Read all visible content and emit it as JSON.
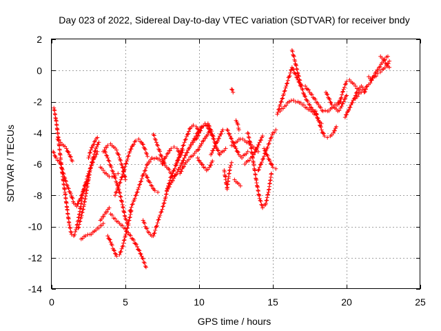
{
  "chart_data": {
    "type": "scatter",
    "title": "Day 023 of 2022, Sidereal Day-to-day VTEC variation (SDTVAR) for receiver bndy",
    "xlabel": "GPS time / hours",
    "ylabel": "SDTVAR / TECUs",
    "xlim": [
      0,
      25
    ],
    "ylim": [
      -14,
      2
    ],
    "x_ticks": [
      0,
      5,
      10,
      15,
      20,
      25
    ],
    "y_ticks": [
      -14,
      -12,
      -10,
      -8,
      -6,
      -4,
      -2,
      0,
      2
    ],
    "x_tick_labels": [
      "0",
      "5",
      "10",
      "15",
      "20",
      "25"
    ],
    "y_tick_labels": [
      "-14",
      "-12",
      "-10",
      "-8",
      "-6",
      "-4",
      "-2",
      "0",
      "2"
    ],
    "grid": true,
    "marker": "+",
    "series": [
      {
        "name": "SDTVAR",
        "color": "#ff0000",
        "x": [
          0.15,
          0.3,
          0.45,
          0.6,
          0.75,
          0.9,
          1.05,
          1.2,
          1.35,
          1.5,
          1.65,
          1.8,
          1.95,
          2.1,
          2.3,
          2.5,
          2.7,
          2.9,
          3.1
        ],
        "y": [
          -2.4,
          -3.2,
          -4.3,
          -5.6,
          -6.8,
          -7.8,
          -8.9,
          -9.9,
          -10.5,
          -10.6,
          -10.2,
          -9.6,
          -8.8,
          -7.9,
          -7.2,
          -6.6,
          -6.1,
          -5.6,
          -5.2
        ]
      },
      {
        "name": "SDTVAR",
        "color": "#ff0000",
        "x": [
          0.1,
          0.3,
          0.5,
          0.7,
          0.9,
          1.1,
          1.3,
          1.5,
          1.7,
          1.9,
          2.1,
          2.3,
          2.5
        ],
        "y": [
          -5.2,
          -5.6,
          -5.8,
          -6.3,
          -6.9,
          -7.5,
          -7.9,
          -8.5,
          -8.7,
          -8.3,
          -7.8,
          -7.3,
          -7.0
        ]
      },
      {
        "name": "SDTVAR",
        "color": "#ff0000",
        "x": [
          0.4,
          0.6,
          0.8,
          1.0,
          1.2,
          1.4
        ],
        "y": [
          -4.4,
          -4.6,
          -4.8,
          -5.0,
          -5.4,
          -5.8
        ]
      },
      {
        "name": "SDTVAR",
        "color": "#ff0000",
        "x": [
          1.8,
          2.0,
          2.2,
          2.4,
          2.6,
          2.8,
          3.0,
          3.2
        ],
        "y": [
          -10.1,
          -9.4,
          -8.6,
          -7.5,
          -6.4,
          -5.6,
          -5.0,
          -4.6
        ]
      },
      {
        "name": "SDTVAR",
        "color": "#ff0000",
        "x": [
          2.0,
          2.3,
          2.6,
          2.9,
          3.2,
          3.5
        ],
        "y": [
          -10.8,
          -10.6,
          -10.5,
          -10.3,
          -10.1,
          -9.8
        ]
      },
      {
        "name": "SDTVAR",
        "color": "#ff0000",
        "x": [
          2.5,
          2.65,
          2.8,
          2.95,
          3.1
        ],
        "y": [
          -5.6,
          -5.1,
          -4.8,
          -4.5,
          -4.3
        ]
      },
      {
        "name": "SDTVAR",
        "color": "#ff0000",
        "x": [
          3.3,
          3.5,
          3.7,
          3.9,
          4.1,
          4.3,
          4.5
        ],
        "y": [
          -6.2,
          -6.4,
          -6.6,
          -6.8,
          -6.8,
          -6.7,
          -6.6
        ]
      },
      {
        "name": "SDTVAR",
        "color": "#ff0000",
        "x": [
          3.6,
          3.8,
          4.0,
          4.2,
          4.4,
          4.6,
          4.8,
          5.0,
          5.2
        ],
        "y": [
          -5.2,
          -5.6,
          -6.1,
          -6.6,
          -7.2,
          -7.8,
          -8.6,
          -9.5,
          -9.9
        ]
      },
      {
        "name": "SDTVAR",
        "color": "#ff0000",
        "x": [
          3.8,
          4.0,
          4.2,
          4.4,
          4.6,
          4.8,
          5.0,
          5.2,
          5.4
        ],
        "y": [
          -10.6,
          -11.0,
          -11.5,
          -11.9,
          -11.8,
          -11.3,
          -10.6,
          -9.8,
          -9.0
        ]
      },
      {
        "name": "SDTVAR",
        "color": "#ff0000",
        "x": [
          3.3,
          3.6,
          3.9
        ],
        "y": [
          -9.6,
          -9.2,
          -8.8
        ]
      },
      {
        "name": "SDTVAR",
        "color": "#ff0000",
        "x": [
          3.5,
          3.8,
          4.0,
          4.2,
          4.4,
          4.6,
          4.8,
          5.0
        ],
        "y": [
          -5.2,
          -4.8,
          -4.7,
          -4.9,
          -5.1,
          -5.6,
          -6.2,
          -7.0
        ]
      },
      {
        "name": "SDTVAR",
        "color": "#ff0000",
        "x": [
          4.0,
          4.3,
          4.6,
          4.9,
          5.2,
          5.5,
          5.8,
          6.1,
          6.4
        ],
        "y": [
          -9.2,
          -9.5,
          -9.8,
          -10.1,
          -10.4,
          -10.8,
          -11.3,
          -11.9,
          -12.6
        ]
      },
      {
        "name": "SDTVAR",
        "color": "#ff0000",
        "x": [
          4.3,
          4.5,
          4.7,
          4.9,
          5.1,
          5.3,
          5.5,
          5.7,
          5.9,
          6.1,
          6.3,
          6.5
        ],
        "y": [
          -8.0,
          -7.5,
          -7.0,
          -6.4,
          -5.8,
          -5.2,
          -4.8,
          -4.5,
          -4.4,
          -4.6,
          -5.0,
          -5.5
        ]
      },
      {
        "name": "SDTVAR",
        "color": "#ff0000",
        "x": [
          5.3,
          5.6,
          5.9,
          6.2,
          6.5,
          6.8,
          7.1,
          7.4
        ],
        "y": [
          -9.0,
          -8.3,
          -7.5,
          -6.7,
          -6.0,
          -5.6,
          -5.6,
          -5.8
        ]
      },
      {
        "name": "SDTVAR",
        "color": "#ff0000",
        "x": [
          6.4,
          6.6,
          6.8,
          7.0,
          7.2
        ],
        "y": [
          -6.7,
          -7.1,
          -7.4,
          -7.7,
          -7.8
        ]
      },
      {
        "name": "SDTVAR",
        "color": "#ff0000",
        "x": [
          6.2,
          6.4,
          6.6,
          6.8
        ],
        "y": [
          -9.6,
          -10.1,
          -10.4,
          -10.6
        ]
      },
      {
        "name": "SDTVAR",
        "color": "#ff0000",
        "x": [
          6.9,
          7.1,
          7.3,
          7.5,
          7.7,
          7.9,
          8.1,
          8.3,
          8.5,
          8.7,
          8.9
        ],
        "y": [
          -10.6,
          -10.0,
          -9.4,
          -8.9,
          -8.2,
          -7.4,
          -6.8,
          -6.4,
          -5.9,
          -5.5,
          -5.1
        ]
      },
      {
        "name": "SDTVAR",
        "color": "#ff0000",
        "x": [
          6.9,
          7.1,
          7.3,
          7.5,
          7.7,
          7.9,
          8.1,
          8.3
        ],
        "y": [
          -4.1,
          -4.6,
          -5.1,
          -5.7,
          -6.1,
          -6.3,
          -6.6,
          -6.8
        ]
      },
      {
        "name": "SDTVAR",
        "color": "#ff0000",
        "x": [
          7.5,
          7.7,
          7.9,
          8.1,
          8.3,
          8.5,
          8.7
        ],
        "y": [
          -6.0,
          -5.6,
          -5.3,
          -5.0,
          -4.9,
          -5.0,
          -5.3
        ]
      },
      {
        "name": "SDTVAR",
        "color": "#ff0000",
        "x": [
          7.8,
          8.1,
          8.4,
          8.7,
          9.0,
          9.3,
          9.6,
          9.9,
          10.2
        ],
        "y": [
          -7.7,
          -7.2,
          -6.7,
          -6.2,
          -5.6,
          -5.0,
          -4.5,
          -4.0,
          -3.6
        ]
      },
      {
        "name": "SDTVAR",
        "color": "#ff0000",
        "x": [
          8.4,
          8.6,
          8.8,
          9.0,
          9.2,
          9.4,
          9.6,
          9.8,
          10.0
        ],
        "y": [
          -6.1,
          -5.6,
          -5.1,
          -4.6,
          -4.1,
          -3.7,
          -3.5,
          -3.6,
          -3.9
        ]
      },
      {
        "name": "SDTVAR",
        "color": "#ff0000",
        "x": [
          8.7,
          8.9,
          9.1,
          9.3,
          9.5,
          9.7,
          9.9,
          10.1,
          10.3,
          10.5,
          10.7
        ],
        "y": [
          -6.6,
          -6.2,
          -5.9,
          -5.7,
          -5.5,
          -5.3,
          -5.1,
          -4.8,
          -4.5,
          -4.2,
          -3.9
        ]
      },
      {
        "name": "SDTVAR",
        "color": "#ff0000",
        "x": [
          9.6,
          9.8,
          10.0,
          10.2,
          10.4,
          10.6,
          10.8,
          11.0
        ],
        "y": [
          -4.6,
          -4.4,
          -4.0,
          -3.6,
          -3.4,
          -3.7,
          -4.0,
          -4.4
        ]
      },
      {
        "name": "SDTVAR",
        "color": "#ff0000",
        "x": [
          9.9,
          10.1,
          10.3,
          10.5,
          10.7,
          10.9
        ],
        "y": [
          -5.6,
          -5.9,
          -6.2,
          -6.4,
          -6.2,
          -5.8
        ]
      },
      {
        "name": "SDTVAR",
        "color": "#ff0000",
        "x": [
          10.6,
          10.8,
          11.0,
          11.2,
          11.4,
          11.6,
          11.8
        ],
        "y": [
          -3.4,
          -3.8,
          -4.4,
          -5.0,
          -5.4,
          -5.2,
          -5.0
        ]
      },
      {
        "name": "SDTVAR",
        "color": "#ff0000",
        "x": [
          10.8,
          11.0,
          11.2,
          11.4,
          11.6
        ],
        "y": [
          -5.4,
          -5.0,
          -4.6,
          -4.2,
          -3.8
        ]
      },
      {
        "name": "SDTVAR",
        "color": "#ff0000",
        "x": [
          11.7,
          11.8,
          11.9,
          12.0,
          12.1,
          12.2
        ],
        "y": [
          -6.4,
          -7.0,
          -7.6,
          -6.8,
          -6.2,
          -5.9
        ]
      },
      {
        "name": "SDTVAR",
        "color": "#ff0000",
        "x": [
          11.9,
          12.1,
          12.3,
          12.5,
          12.7,
          12.9,
          13.1,
          13.3
        ],
        "y": [
          -3.8,
          -4.2,
          -4.6,
          -5.0,
          -5.4,
          -5.6,
          -5.4,
          -5.2
        ]
      },
      {
        "name": "SDTVAR",
        "color": "#ff0000",
        "x": [
          12.2,
          12.5,
          12.8,
          13.1,
          13.4,
          13.7,
          14.0
        ],
        "y": [
          -4.8,
          -4.6,
          -4.4,
          -4.5,
          -4.7,
          -4.9,
          -5.2
        ]
      },
      {
        "name": "SDTVAR",
        "color": "#ff0000",
        "x": [
          12.4,
          12.6,
          12.8
        ],
        "y": [
          -7.0,
          -7.2,
          -7.4
        ]
      },
      {
        "name": "SDTVAR",
        "color": "#ff0000",
        "x": [
          12.5,
          12.6,
          12.7
        ],
        "y": [
          -3.2,
          -3.4,
          -3.8
        ]
      },
      {
        "name": "SDTVAR",
        "color": "#ff0000",
        "x": [
          13.1,
          13.3,
          13.5,
          13.7,
          13.9,
          14.1,
          14.3
        ],
        "y": [
          -6.0,
          -5.8,
          -5.6,
          -5.4,
          -5.0,
          -4.6,
          -4.2
        ]
      },
      {
        "name": "SDTVAR",
        "color": "#ff0000",
        "x": [
          13.3,
          13.5,
          13.7,
          13.9,
          14.1,
          14.3,
          14.5,
          14.7,
          14.9
        ],
        "y": [
          -4.0,
          -4.8,
          -6.0,
          -7.2,
          -8.2,
          -8.8,
          -8.6,
          -7.8,
          -6.6
        ]
      },
      {
        "name": "SDTVAR",
        "color": "#ff0000",
        "x": [
          14.0,
          14.2,
          14.4,
          14.6,
          14.8,
          15.0,
          15.2
        ],
        "y": [
          -6.4,
          -6.0,
          -5.5,
          -5.0,
          -4.5,
          -4.0,
          -3.8
        ]
      },
      {
        "name": "SDTVAR",
        "color": "#ff0000",
        "x": [
          14.4,
          14.6,
          14.8,
          15.0,
          15.2
        ],
        "y": [
          -5.0,
          -5.4,
          -5.8,
          -6.2,
          -6.3
        ]
      },
      {
        "name": "SDTVAR",
        "color": "#ff0000",
        "x": [
          15.3,
          15.5,
          15.7,
          15.9,
          16.1,
          16.3,
          16.5,
          16.7,
          16.9
        ],
        "y": [
          -2.8,
          -2.2,
          -1.6,
          -1.0,
          -0.4,
          0.2,
          -0.2,
          -0.6,
          -1.0
        ]
      },
      {
        "name": "SDTVAR",
        "color": "#ff0000",
        "x": [
          16.3,
          16.5,
          16.7,
          16.9,
          17.1,
          17.3,
          17.5,
          17.7,
          17.9,
          18.1,
          18.3
        ],
        "y": [
          1.3,
          0.6,
          -0.2,
          -0.9,
          -1.5,
          -1.9,
          -2.2,
          -2.5,
          -2.8,
          -3.2,
          -3.4
        ]
      },
      {
        "name": "SDTVAR",
        "color": "#ff0000",
        "x": [
          15.5,
          15.8,
          16.1,
          16.4,
          16.7,
          17.0,
          17.3,
          17.6,
          17.9
        ],
        "y": [
          -2.6,
          -2.3,
          -2.0,
          -1.9,
          -2.0,
          -2.2,
          -2.4,
          -2.6,
          -2.8
        ]
      },
      {
        "name": "SDTVAR",
        "color": "#ff0000",
        "x": [
          17.2,
          17.5,
          17.8,
          18.1,
          18.4,
          18.7,
          19.0,
          19.3,
          19.6
        ],
        "y": [
          -1.0,
          -1.4,
          -1.8,
          -2.2,
          -2.6,
          -2.6,
          -2.4,
          -2.2,
          -2.0
        ]
      },
      {
        "name": "SDTVAR",
        "color": "#ff0000",
        "x": [
          17.9,
          18.1,
          18.3,
          18.5,
          18.7,
          18.9,
          19.1,
          19.3
        ],
        "y": [
          -2.6,
          -3.2,
          -3.8,
          -4.2,
          -4.3,
          -4.2,
          -4.0,
          -3.6
        ]
      },
      {
        "name": "SDTVAR",
        "color": "#ff0000",
        "x": [
          18.6,
          18.8,
          19.0,
          19.2,
          19.4,
          19.6,
          19.8,
          20.0
        ],
        "y": [
          -1.4,
          -1.8,
          -2.2,
          -2.4,
          -2.6,
          -2.4,
          -2.0,
          -1.6
        ]
      },
      {
        "name": "SDTVAR",
        "color": "#ff0000",
        "x": [
          19.4,
          19.6,
          19.8,
          20.0,
          20.2,
          20.4,
          20.6,
          20.8,
          21.0
        ],
        "y": [
          -2.2,
          -1.8,
          -1.2,
          -0.7,
          -0.6,
          -0.8,
          -1.0,
          -1.2,
          -1.0
        ]
      },
      {
        "name": "SDTVAR",
        "color": "#ff0000",
        "x": [
          19.9,
          20.1,
          20.3,
          20.5,
          20.7,
          20.9,
          21.1,
          21.3
        ],
        "y": [
          -3.0,
          -2.6,
          -2.2,
          -1.8,
          -1.4,
          -1.2,
          -1.1,
          -1.2
        ]
      },
      {
        "name": "SDTVAR",
        "color": "#ff0000",
        "x": [
          21.2,
          21.4,
          21.6,
          21.8,
          22.0,
          22.2,
          22.4,
          22.6,
          22.8
        ],
        "y": [
          -1.4,
          -1.0,
          -0.8,
          -0.4,
          -0.1,
          0.2,
          0.5,
          0.7,
          0.9
        ]
      },
      {
        "name": "SDTVAR",
        "color": "#ff0000",
        "x": [
          21.5,
          21.7,
          21.9,
          22.1,
          22.3,
          22.5,
          22.7,
          22.9
        ],
        "y": [
          -0.4,
          -0.6,
          -0.4,
          -0.2,
          -0.1,
          0.1,
          0.3,
          0.6
        ]
      },
      {
        "name": "SDTVAR",
        "color": "#ff0000",
        "x": [
          22.3,
          22.5,
          22.7,
          22.9
        ],
        "y": [
          0.9,
          0.7,
          0.4,
          0.2
        ]
      },
      {
        "name": "SDTVAR",
        "color": "#ff0000",
        "x": [
          20.6,
          20.9,
          21.2
        ],
        "y": [
          -1.8,
          -1.4,
          -1.2
        ]
      },
      {
        "name": "SDTVAR",
        "color": "#ff0000",
        "x": [
          12.2,
          12.3
        ],
        "y": [
          -1.2,
          -1.4
        ]
      }
    ]
  }
}
